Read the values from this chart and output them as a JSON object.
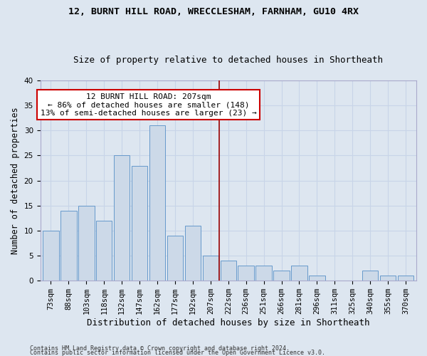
{
  "title": "12, BURNT HILL ROAD, WRECCLESHAM, FARNHAM, GU10 4RX",
  "subtitle": "Size of property relative to detached houses in Shortheath",
  "xlabel": "Distribution of detached houses by size in Shortheath",
  "ylabel": "Number of detached properties",
  "categories": [
    "73sqm",
    "88sqm",
    "103sqm",
    "118sqm",
    "132sqm",
    "147sqm",
    "162sqm",
    "177sqm",
    "192sqm",
    "207sqm",
    "222sqm",
    "236sqm",
    "251sqm",
    "266sqm",
    "281sqm",
    "296sqm",
    "311sqm",
    "325sqm",
    "340sqm",
    "355sqm",
    "370sqm"
  ],
  "values": [
    10,
    14,
    15,
    12,
    25,
    23,
    31,
    9,
    11,
    5,
    4,
    3,
    3,
    2,
    3,
    1,
    0,
    0,
    2,
    1,
    1
  ],
  "bar_color": "#ccd9e8",
  "bar_edge_color": "#6699cc",
  "vline_color": "#990000",
  "annotation_line1": "12 BURNT HILL ROAD: 207sqm",
  "annotation_line2": "← 86% of detached houses are smaller (148)",
  "annotation_line3": "13% of semi-detached houses are larger (23) →",
  "annotation_box_color": "#ffffff",
  "annotation_box_edge": "#cc0000",
  "ylim": [
    0,
    40
  ],
  "yticks": [
    0,
    5,
    10,
    15,
    20,
    25,
    30,
    35,
    40
  ],
  "grid_color": "#c8d4e8",
  "background_color": "#dde6f0",
  "footer1": "Contains HM Land Registry data © Crown copyright and database right 2024.",
  "footer2": "Contains public sector information licensed under the Open Government Licence v3.0.",
  "title_fontsize": 9.5,
  "subtitle_fontsize": 9,
  "xlabel_fontsize": 9,
  "ylabel_fontsize": 8.5,
  "tick_fontsize": 7.5,
  "annotation_fontsize": 8,
  "footer_fontsize": 6
}
